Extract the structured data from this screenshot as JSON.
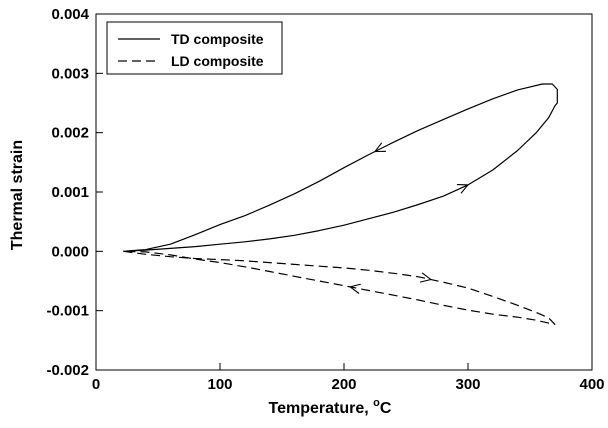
{
  "chart_data": {
    "type": "line",
    "xlabel": "Temperature, ",
    "xlabel_unit": "C",
    "xlabel_degree": "o",
    "ylabel": "Thermal strain",
    "xlim": [
      0,
      400
    ],
    "ylim": [
      -0.002,
      0.004
    ],
    "x_ticks": [
      "0",
      "100",
      "200",
      "300",
      "400"
    ],
    "y_ticks": [
      "-0.002",
      "-0.001",
      "0.000",
      "0.001",
      "0.002",
      "0.003",
      "0.004"
    ],
    "grid": false,
    "legend_position": "top-left",
    "series": [
      {
        "name": "TD composite",
        "style": "solid",
        "color": "#000000",
        "x": [
          22,
          40,
          60,
          80,
          100,
          120,
          140,
          160,
          180,
          200,
          220,
          240,
          260,
          280,
          300,
          320,
          340,
          355,
          365,
          370,
          372,
          372,
          368,
          360,
          340,
          320,
          300,
          280,
          260,
          240,
          220,
          200,
          180,
          160,
          140,
          120,
          100,
          80,
          60,
          40,
          22
        ],
        "y": [
          0.0,
          2e-05,
          5e-05,
          8e-05,
          0.00012,
          0.00016,
          0.00021,
          0.00027,
          0.00035,
          0.00044,
          0.00055,
          0.00066,
          0.00079,
          0.00093,
          0.00112,
          0.00137,
          0.0017,
          0.002,
          0.00225,
          0.00245,
          0.0025,
          0.00273,
          0.00282,
          0.00282,
          0.00272,
          0.00257,
          0.0024,
          0.00222,
          0.00204,
          0.00184,
          0.00163,
          0.00141,
          0.00118,
          0.00097,
          0.00078,
          0.0006,
          0.00045,
          0.00028,
          0.00012,
          3e-05,
          0.0
        ]
      },
      {
        "name": "LD composite",
        "style": "dashed",
        "color": "#000000",
        "x": [
          22,
          40,
          60,
          80,
          100,
          120,
          140,
          160,
          180,
          200,
          220,
          240,
          260,
          280,
          300,
          320,
          340,
          355,
          365,
          370,
          365,
          355,
          340,
          320,
          300,
          280,
          260,
          240,
          220,
          200,
          180,
          160,
          140,
          120,
          100,
          80,
          60,
          40,
          22
        ],
        "y": [
          0.0,
          -5e-05,
          -9e-05,
          -0.00012,
          -0.00014,
          -0.00016,
          -0.00019,
          -0.00022,
          -0.00025,
          -0.00028,
          -0.00032,
          -0.00037,
          -0.00043,
          -0.00052,
          -0.00062,
          -0.00076,
          -0.00091,
          -0.00103,
          -0.00112,
          -0.00123,
          -0.00121,
          -0.00116,
          -0.00111,
          -0.00106,
          -0.00099,
          -0.00091,
          -0.00082,
          -0.00074,
          -0.00066,
          -0.00058,
          -0.0005,
          -0.00042,
          -0.00034,
          -0.00026,
          -0.00019,
          -0.00013,
          -6e-05,
          -1e-05,
          0.0
        ]
      }
    ],
    "arrows": [
      {
        "series": "TD composite",
        "at_x": 300,
        "direction": "up-right"
      },
      {
        "series": "TD composite",
        "at_x": 225,
        "direction": "down-left"
      },
      {
        "series": "LD composite",
        "at_x": 270,
        "direction": "right"
      },
      {
        "series": "LD composite",
        "at_x": 205,
        "direction": "left"
      }
    ]
  }
}
